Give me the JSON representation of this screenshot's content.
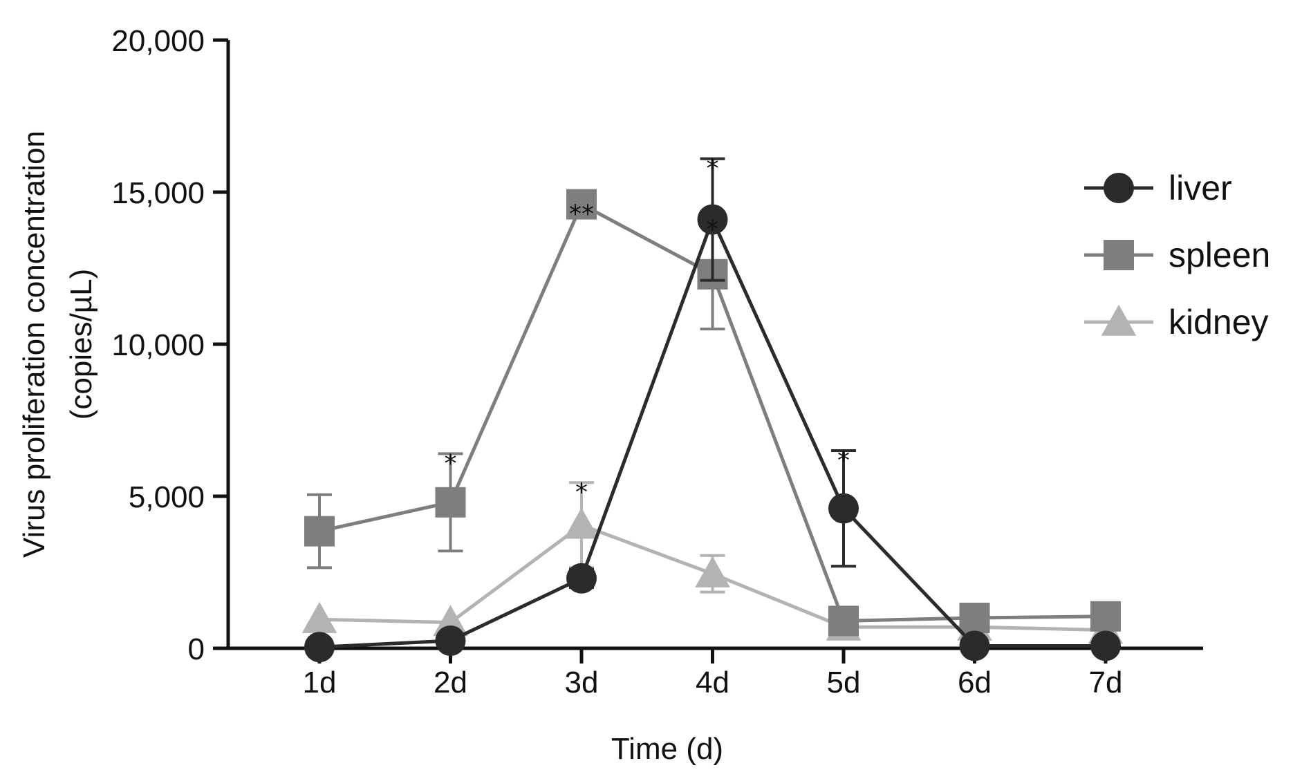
{
  "chart_data": {
    "type": "line",
    "title": "",
    "xlabel": "Time (d)",
    "ylabel_line1": "Virus proliferation concentration",
    "ylabel_line2": "(copies/µL)",
    "categories": [
      "1d",
      "2d",
      "3d",
      "4d",
      "5d",
      "6d",
      "7d"
    ],
    "ylim": [
      0,
      20000
    ],
    "yticks": [
      0,
      5000,
      10000,
      15000,
      20000
    ],
    "ytick_labels": [
      "0",
      "5,000",
      "10,000",
      "15,000",
      "20,000"
    ],
    "grid": false,
    "legend_position": "right",
    "series": [
      {
        "name": "liver",
        "marker": "circle",
        "color": "#2b2b2b",
        "values": [
          40,
          250,
          2300,
          14100,
          4600,
          80,
          80
        ],
        "error": [
          0,
          0,
          300,
          2000,
          1900,
          0,
          0
        ],
        "significance": [
          "",
          "",
          "",
          "*",
          "*",
          "",
          ""
        ]
      },
      {
        "name": "spleen",
        "marker": "square",
        "color": "#7e7e7e",
        "values": [
          3850,
          4800,
          14600,
          12300,
          900,
          1000,
          1050
        ],
        "error": [
          1200,
          1600,
          0,
          1800,
          0,
          0,
          0
        ],
        "significance": [
          "",
          "*",
          "**",
          "*",
          "",
          "",
          ""
        ]
      },
      {
        "name": "kidney",
        "marker": "triangle",
        "color": "#b3b3b3",
        "values": [
          950,
          850,
          4050,
          2450,
          700,
          700,
          600
        ],
        "error": [
          0,
          0,
          1400,
          600,
          0,
          0,
          0
        ],
        "significance": [
          "",
          "",
          "*",
          "",
          "",
          "",
          ""
        ]
      }
    ]
  }
}
